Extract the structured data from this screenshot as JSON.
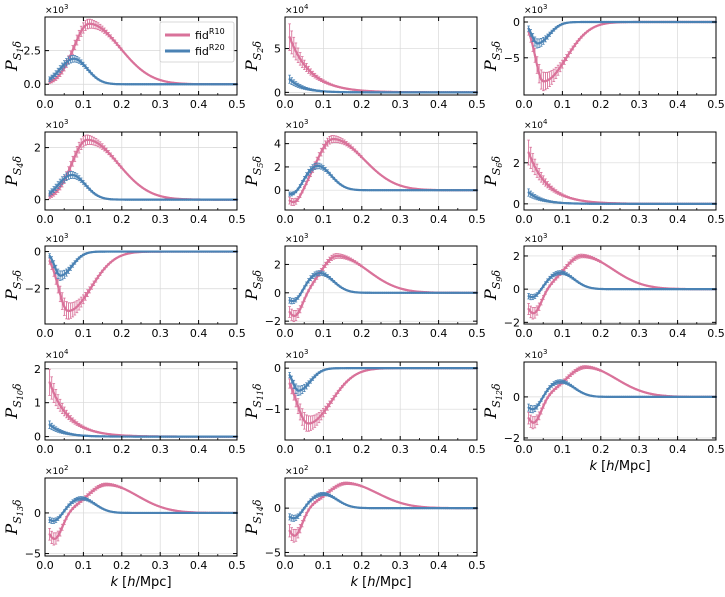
{
  "chart_data": {
    "type": "line",
    "colors": {
      "R10": "#d9729a",
      "R20": "#4a82b4"
    },
    "legend": [
      {
        "series": "R10",
        "base": "fid",
        "sup": "R10"
      },
      {
        "series": "R20",
        "base": "fid",
        "sup": "R20"
      }
    ],
    "legend_location": "top-right of first panel",
    "xlabel": {
      "k": "k",
      "rest": " [",
      "h": "h",
      "unit": "/Mpc]"
    },
    "xlim": [
      0,
      0.5
    ],
    "xticks": [
      0.0,
      0.1,
      0.2,
      0.3,
      0.4,
      0.5
    ],
    "xtick_labels": [
      "0.0",
      "0.1",
      "0.2",
      "0.3",
      "0.4",
      "0.5"
    ],
    "grid": true,
    "panels": [
      {
        "id": "1",
        "ylabel_main": "P",
        "ylabel_sub": "S",
        "ylabel_idx": "1",
        "ylabel_end": "δ",
        "multiplier_base": "×10",
        "multiplier_exp": "3",
        "ylim": [
          -0.8,
          5.0
        ],
        "yticks": [
          0,
          2.5
        ],
        "ytick_labels": [
          "0.0",
          "2.5"
        ],
        "R10": {
          "type": "bump",
          "amp": 4.5,
          "mu": 0.115,
          "sl": 0.04,
          "sr": 0.08
        },
        "R20": {
          "type": "bump",
          "amp": 1.9,
          "mu": 0.075,
          "sl": 0.035,
          "sr": 0.035
        }
      },
      {
        "id": "2",
        "ylabel_main": "P",
        "ylabel_sub": "S",
        "ylabel_idx": "2",
        "ylabel_end": "δ",
        "multiplier_base": "×10",
        "multiplier_exp": "4",
        "ylim": [
          -0.3,
          8.6
        ],
        "yticks": [
          0,
          5
        ],
        "ytick_labels": [
          "0",
          "5"
        ],
        "R10": {
          "type": "decay",
          "amp": 6.3,
          "scale": 0.055
        },
        "R20": {
          "type": "decay",
          "amp": 1.5,
          "scale": 0.035
        }
      },
      {
        "id": "3",
        "ylabel_main": "P",
        "ylabel_sub": "S",
        "ylabel_idx": "3",
        "ylabel_end": "δ",
        "multiplier_base": "×10",
        "multiplier_exp": "3",
        "ylim": [
          -10.2,
          0.7
        ],
        "yticks": [
          0,
          -5
        ],
        "ytick_labels": [
          "0",
          "−5"
        ],
        "R10": {
          "type": "dip",
          "amp": -8.3,
          "mu": 0.05,
          "sl": 0.02,
          "sr": 0.06
        },
        "R20": {
          "type": "dip",
          "amp": -3.0,
          "mu": 0.035,
          "sl": 0.015,
          "sr": 0.03
        }
      },
      {
        "id": "4",
        "ylabel_main": "P",
        "ylabel_sub": "S",
        "ylabel_idx": "4",
        "ylabel_end": "δ",
        "multiplier_base": "×10",
        "multiplier_exp": "3",
        "ylim": [
          -0.4,
          2.6
        ],
        "yticks": [
          0,
          2
        ],
        "ytick_labels": [
          "0",
          "2"
        ],
        "R10": {
          "type": "bump",
          "amp": 2.3,
          "mu": 0.11,
          "sl": 0.04,
          "sr": 0.08
        },
        "R20": {
          "type": "bump",
          "amp": 0.95,
          "mu": 0.07,
          "sl": 0.035,
          "sr": 0.035
        }
      },
      {
        "id": "5",
        "ylabel_main": "P",
        "ylabel_sub": "S",
        "ylabel_idx": "5",
        "ylabel_end": "δ",
        "multiplier_base": "×10",
        "multiplier_exp": "3",
        "ylim": [
          -1.7,
          5.0
        ],
        "yticks": [
          0,
          2,
          4
        ],
        "ytick_labels": [
          "0",
          "2",
          "4"
        ],
        "R10": {
          "type": "osc",
          "amp": 4.4,
          "mu": 0.125,
          "sl": 0.04,
          "sr": 0.08,
          "neg": -1.2
        },
        "R20": {
          "type": "osc",
          "amp": 2.1,
          "mu": 0.085,
          "sl": 0.035,
          "sr": 0.035,
          "neg": -0.7
        }
      },
      {
        "id": "6",
        "ylabel_main": "P",
        "ylabel_sub": "S",
        "ylabel_idx": "6",
        "ylabel_end": "δ",
        "multiplier_base": "×10",
        "multiplier_exp": "4",
        "ylim": [
          -0.3,
          3.5
        ],
        "yticks": [
          0,
          2
        ],
        "ytick_labels": [
          "0",
          "2"
        ],
        "R10": {
          "type": "decay",
          "amp": 2.5,
          "scale": 0.05
        },
        "R20": {
          "type": "decay",
          "amp": 0.55,
          "scale": 0.035
        }
      },
      {
        "id": "7",
        "ylabel_main": "P",
        "ylabel_sub": "S",
        "ylabel_idx": "7",
        "ylabel_end": "δ",
        "multiplier_base": "×10",
        "multiplier_exp": "3",
        "ylim": [
          -3.9,
          0.3
        ],
        "yticks": [
          0,
          -2
        ],
        "ytick_labels": [
          "0",
          "−2"
        ],
        "R10": {
          "type": "dip",
          "amp": -3.2,
          "mu": 0.06,
          "sl": 0.025,
          "sr": 0.06
        },
        "R20": {
          "type": "dip",
          "amp": -1.3,
          "mu": 0.04,
          "sl": 0.015,
          "sr": 0.03
        }
      },
      {
        "id": "8",
        "ylabel_main": "P",
        "ylabel_sub": "S",
        "ylabel_idx": "8",
        "ylabel_end": "δ",
        "multiplier_base": "×10",
        "multiplier_exp": "3",
        "ylim": [
          -2.2,
          3.3
        ],
        "yticks": [
          -2,
          0,
          2
        ],
        "ytick_labels": [
          "−2",
          "0",
          "2"
        ],
        "R10": {
          "type": "osc",
          "amp": 2.6,
          "mu": 0.135,
          "sl": 0.04,
          "sr": 0.08,
          "neg": -1.7
        },
        "R20": {
          "type": "osc",
          "amp": 1.4,
          "mu": 0.09,
          "sl": 0.035,
          "sr": 0.035,
          "neg": -0.8
        }
      },
      {
        "id": "9",
        "ylabel_main": "P",
        "ylabel_sub": "S",
        "ylabel_idx": "9",
        "ylabel_end": "δ",
        "multiplier_base": "×10",
        "multiplier_exp": "3",
        "ylim": [
          -2.1,
          2.6
        ],
        "yticks": [
          -2,
          0,
          2
        ],
        "ytick_labels": [
          "−2",
          "0",
          "2"
        ],
        "R10": {
          "type": "osc",
          "amp": 2.0,
          "mu": 0.15,
          "sl": 0.045,
          "sr": 0.08,
          "neg": -1.5
        },
        "R20": {
          "type": "osc",
          "amp": 1.0,
          "mu": 0.095,
          "sl": 0.035,
          "sr": 0.035,
          "neg": -0.6
        }
      },
      {
        "id": "10",
        "ylabel_main": "P",
        "ylabel_sub": "S",
        "ylabel_idx": "10",
        "ylabel_end": "δ",
        "multiplier_base": "×10",
        "multiplier_exp": "4",
        "ylim": [
          -0.1,
          2.2
        ],
        "yticks": [
          0,
          1,
          2
        ],
        "ytick_labels": [
          "0",
          "1",
          "2"
        ],
        "R10": {
          "type": "decay",
          "amp": 1.6,
          "scale": 0.05
        },
        "R20": {
          "type": "decay",
          "amp": 0.35,
          "scale": 0.035
        }
      },
      {
        "id": "11",
        "ylabel_main": "P",
        "ylabel_sub": "S",
        "ylabel_idx": "11",
        "ylabel_end": "δ",
        "multiplier_base": "×10",
        "multiplier_exp": "3",
        "ylim": [
          -1.75,
          0.15
        ],
        "yticks": [
          0,
          -1
        ],
        "ytick_labels": [
          "0",
          "−1"
        ],
        "R10": {
          "type": "dip",
          "amp": -1.35,
          "mu": 0.06,
          "sl": 0.03,
          "sr": 0.06
        },
        "R20": {
          "type": "dip",
          "amp": -0.55,
          "mu": 0.035,
          "sl": 0.015,
          "sr": 0.03
        }
      },
      {
        "id": "12",
        "ylabel_main": "P",
        "ylabel_sub": "S",
        "ylabel_idx": "12",
        "ylabel_end": "δ",
        "multiplier_base": "×10",
        "multiplier_exp": "3",
        "ylim": [
          -2.1,
          1.7
        ],
        "yticks": [
          -2,
          0
        ],
        "ytick_labels": [
          "−2",
          "0"
        ],
        "R10": {
          "type": "osc",
          "amp": 1.45,
          "mu": 0.16,
          "sl": 0.05,
          "sr": 0.08,
          "neg": -1.3
        },
        "R20": {
          "type": "osc",
          "amp": 0.75,
          "mu": 0.095,
          "sl": 0.035,
          "sr": 0.035,
          "neg": -0.7
        }
      },
      {
        "id": "13",
        "ylabel_main": "P",
        "ylabel_sub": "S",
        "ylabel_idx": "13",
        "ylabel_end": "δ",
        "multiplier_base": "×10",
        "multiplier_exp": "2",
        "ylim": [
          -5.3,
          4.3
        ],
        "yticks": [
          -5,
          0
        ],
        "ytick_labels": [
          "−5",
          "0"
        ],
        "R10": {
          "type": "osc",
          "amp": 3.5,
          "mu": 0.16,
          "sl": 0.05,
          "sr": 0.08,
          "neg": -3.3
        },
        "R20": {
          "type": "osc",
          "amp": 1.8,
          "mu": 0.095,
          "sl": 0.035,
          "sr": 0.035,
          "neg": -1.2
        }
      },
      {
        "id": "14",
        "ylabel_main": "P",
        "ylabel_sub": "S",
        "ylabel_idx": "14",
        "ylabel_end": "δ",
        "multiplier_base": "×10",
        "multiplier_exp": "2",
        "ylim": [
          -5.4,
          3.4
        ],
        "yticks": [
          -5,
          0
        ],
        "ytick_labels": [
          "−5",
          "0"
        ],
        "R10": {
          "type": "osc",
          "amp": 2.8,
          "mu": 0.16,
          "sl": 0.05,
          "sr": 0.08,
          "neg": -3.2
        },
        "R20": {
          "type": "osc",
          "amp": 1.6,
          "mu": 0.1,
          "sl": 0.035,
          "sr": 0.035,
          "neg": -1.3
        }
      }
    ]
  }
}
